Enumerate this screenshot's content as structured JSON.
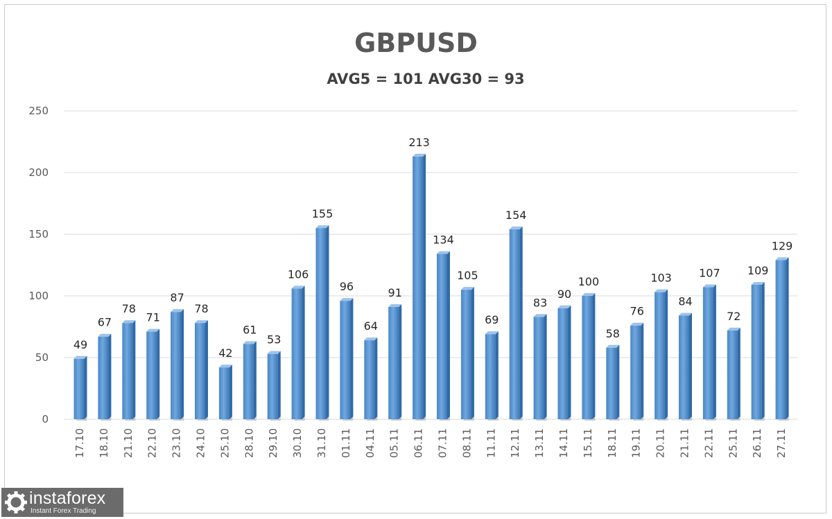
{
  "chart_data": {
    "type": "bar",
    "title": "GBPUSD",
    "subtitle": "AVG5 = 101 AVG30 = 93",
    "xlabel": "",
    "ylabel": "",
    "ylim": [
      0,
      250
    ],
    "yticks": [
      0,
      50,
      100,
      150,
      200,
      250
    ],
    "grid": true,
    "bar_color": "#5b9bd5",
    "categories": [
      "17.10",
      "18.10",
      "21.10",
      "22.10",
      "23.10",
      "24.10",
      "25.10",
      "28.10",
      "29.10",
      "30.10",
      "31.10",
      "01.11",
      "04.11",
      "05.11",
      "06.11",
      "07.11",
      "08.11",
      "11.11",
      "12.11",
      "13.11",
      "14.11",
      "15.11",
      "18.11",
      "19.11",
      "20.11",
      "21.11",
      "22.11",
      "25.11",
      "26.11",
      "27.11"
    ],
    "values": [
      49,
      67,
      78,
      71,
      87,
      78,
      42,
      61,
      53,
      106,
      155,
      96,
      64,
      91,
      213,
      134,
      105,
      69,
      154,
      83,
      90,
      100,
      58,
      76,
      103,
      84,
      107,
      72,
      109,
      129
    ]
  },
  "watermark": {
    "brand": "instaforex",
    "tagline": "Instant Forex Trading"
  }
}
